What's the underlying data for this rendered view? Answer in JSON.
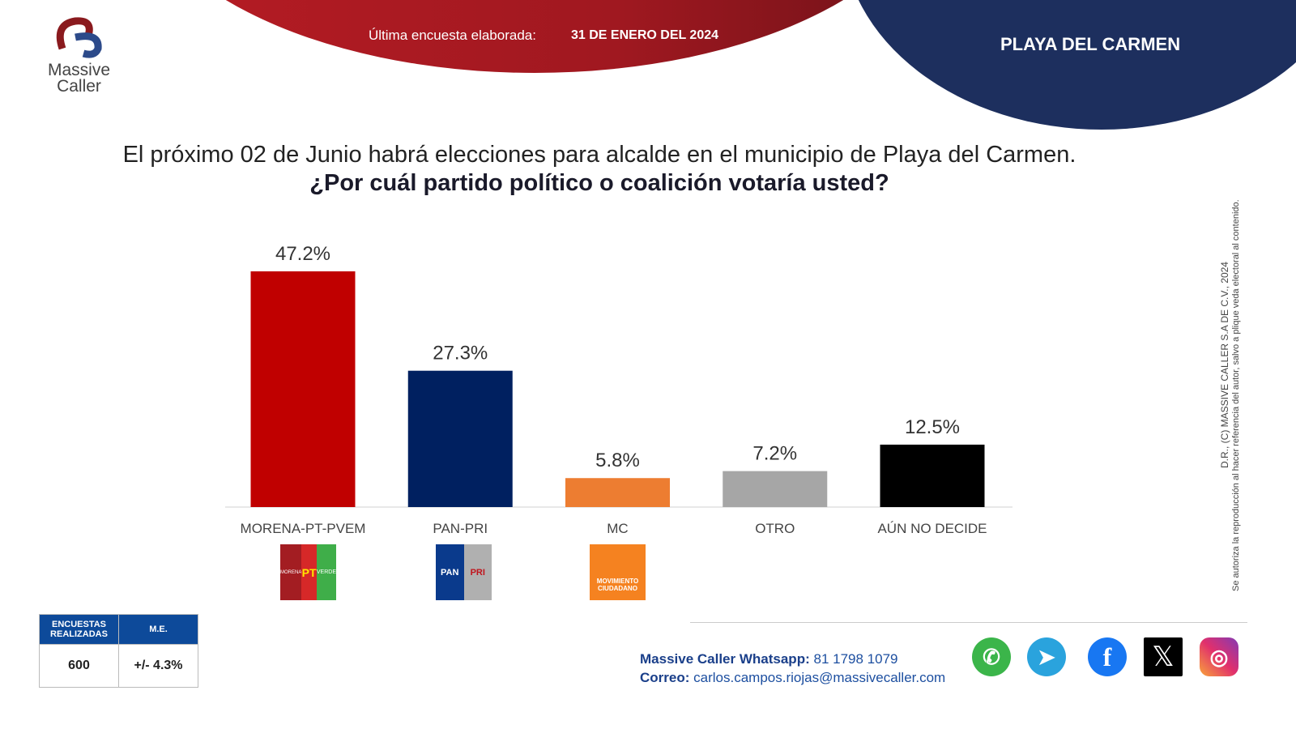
{
  "header": {
    "survey_label": "Última encuesta elaborada:",
    "survey_date": "31 DE ENERO DEL 2024",
    "city": "PLAYA DEL CARMEN"
  },
  "logo": {
    "line1": "Massive",
    "line2": "Caller"
  },
  "question": {
    "line1": "El próximo 02 de Junio habrá elecciones para alcalde en el municipio de Playa del Carmen.",
    "line2": "¿Por cuál partido político o coalición votaría usted?"
  },
  "chart_data": {
    "type": "bar",
    "categories": [
      "MORENA-PT-PVEM",
      "PAN-PRI",
      "MC",
      "OTRO",
      "AÚN NO DECIDE"
    ],
    "values": [
      47.2,
      27.3,
      5.8,
      7.2,
      12.5
    ],
    "labels": [
      "47.2%",
      "27.3%",
      "5.8%",
      "7.2%",
      "12.5%"
    ],
    "colors": [
      "#c00000",
      "#002060",
      "#ed7d31",
      "#a6a6a6",
      "#000000"
    ],
    "ylim": [
      0,
      50
    ]
  },
  "party_logos": {
    "morena": "MORENA",
    "pt": "PT",
    "verde": "VERDE",
    "pan": "PAN",
    "pri": "PRI",
    "mc": "MOVIMIENTO CIUDADANO"
  },
  "stats": {
    "h1": "ENCUESTAS REALIZADAS",
    "h2": "M.E.",
    "count": "600",
    "margin": "+/- 4.3%"
  },
  "contact": {
    "wa_label": "Massive Caller Whatsapp:",
    "wa": "81 1798 1079",
    "mail_label": "Correo:",
    "mail": "carlos.campos.riojas@massivecaller.com"
  },
  "copyright": {
    "line1": "D.R., (C) MASSIVE CALLER S.A DE C.V., 2024",
    "line2": "Se autoriza la reproducción al hacer referencia del autor, salvo a plique veda electoral al contenido."
  }
}
